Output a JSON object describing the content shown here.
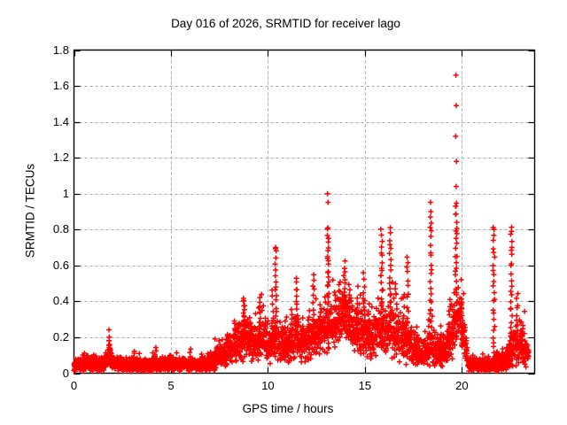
{
  "page": {
    "background": "#ffffff"
  },
  "chart_data": {
    "type": "scatter",
    "title": "Day 016 of 2026, SRMTID for receiver lago",
    "xlabel": "GPS time / hours",
    "ylabel": "SRMTID / TECUs",
    "series_name": "SRMTID",
    "xlim": [
      0,
      23.75
    ],
    "ylim": [
      0,
      1.8
    ],
    "xticks": [
      0,
      5,
      10,
      15,
      20
    ],
    "yticks": [
      0,
      0.2,
      0.4,
      0.6,
      0.8,
      1,
      1.2,
      1.4,
      1.6,
      1.8
    ],
    "xtick_labels": [
      "0",
      "5",
      "10",
      "15",
      "20"
    ],
    "ytick_labels": [
      "0",
      "0.2",
      "0.4",
      "0.6",
      "0.8",
      "1",
      "1.2",
      "1.4",
      "1.6",
      "1.8"
    ],
    "grid": true,
    "grid_style": "dashed",
    "legend_position": "none",
    "marker": {
      "shape": "plus",
      "color": "#ff0000",
      "size": 7,
      "stroke": 1.5
    },
    "colors": {
      "marker": "#ff0000",
      "grid": "#a8a8a8",
      "axis": "#000000",
      "text": "#000000",
      "background": "#ffffff"
    },
    "points_per_hour": 130,
    "baseline_band": [
      [
        0.0,
        0.05,
        0.035
      ],
      [
        1.5,
        0.05,
        0.03
      ],
      [
        1.8,
        0.1,
        0.05
      ],
      [
        2.1,
        0.06,
        0.03
      ],
      [
        2.6,
        0.045,
        0.03
      ],
      [
        3.6,
        0.045,
        0.03
      ],
      [
        4.6,
        0.05,
        0.03
      ],
      [
        5.6,
        0.045,
        0.028
      ],
      [
        6.6,
        0.05,
        0.03
      ],
      [
        7.2,
        0.07,
        0.04
      ],
      [
        7.7,
        0.1,
        0.05
      ],
      [
        8.1,
        0.15,
        0.07
      ],
      [
        8.8,
        0.2,
        0.09
      ],
      [
        9.3,
        0.16,
        0.07
      ],
      [
        9.7,
        0.2,
        0.09
      ],
      [
        10.1,
        0.15,
        0.07
      ],
      [
        10.45,
        0.2,
        0.1
      ],
      [
        10.9,
        0.15,
        0.07
      ],
      [
        11.5,
        0.2,
        0.1
      ],
      [
        11.9,
        0.16,
        0.08
      ],
      [
        12.4,
        0.2,
        0.09
      ],
      [
        13.0,
        0.25,
        0.11
      ],
      [
        13.6,
        0.28,
        0.11
      ],
      [
        14.0,
        0.32,
        0.11
      ],
      [
        14.4,
        0.26,
        0.1
      ],
      [
        14.8,
        0.24,
        0.1
      ],
      [
        15.3,
        0.2,
        0.09
      ],
      [
        15.9,
        0.24,
        0.11
      ],
      [
        16.4,
        0.24,
        0.11
      ],
      [
        16.8,
        0.2,
        0.1
      ],
      [
        17.3,
        0.16,
        0.09
      ],
      [
        17.9,
        0.11,
        0.06
      ],
      [
        18.4,
        0.14,
        0.08
      ],
      [
        19.0,
        0.11,
        0.06
      ],
      [
        19.5,
        0.22,
        0.1
      ],
      [
        19.9,
        0.32,
        0.1
      ],
      [
        20.1,
        0.2,
        0.08
      ],
      [
        20.35,
        0.05,
        0.03
      ],
      [
        21.5,
        0.04,
        0.025
      ],
      [
        21.8,
        0.07,
        0.045
      ],
      [
        22.2,
        0.06,
        0.04
      ],
      [
        22.6,
        0.13,
        0.08
      ],
      [
        23.0,
        0.16,
        0.09
      ],
      [
        23.45,
        0.09,
        0.05
      ]
    ],
    "spikes": [
      [
        1.85,
        0.06,
        0.19,
        14
      ],
      [
        3.1,
        0.04,
        0.12,
        8
      ],
      [
        4.2,
        0.04,
        0.13,
        8
      ],
      [
        5.0,
        0.04,
        0.11,
        6
      ],
      [
        6.0,
        0.04,
        0.12,
        6
      ],
      [
        7.9,
        0.1,
        0.22,
        8
      ],
      [
        8.3,
        0.1,
        0.3,
        10
      ],
      [
        8.75,
        0.18,
        0.43,
        14
      ],
      [
        9.1,
        0.12,
        0.3,
        8
      ],
      [
        9.6,
        0.18,
        0.42,
        12
      ],
      [
        9.9,
        0.12,
        0.3,
        8
      ],
      [
        10.25,
        0.15,
        0.45,
        10
      ],
      [
        10.4,
        0.25,
        0.7,
        16
      ],
      [
        10.9,
        0.1,
        0.28,
        8
      ],
      [
        11.2,
        0.15,
        0.35,
        8
      ],
      [
        11.45,
        0.2,
        0.53,
        14
      ],
      [
        11.8,
        0.12,
        0.3,
        8
      ],
      [
        12.1,
        0.15,
        0.35,
        8
      ],
      [
        12.35,
        0.2,
        0.55,
        12
      ],
      [
        12.7,
        0.15,
        0.38,
        8
      ],
      [
        13.1,
        0.35,
        0.82,
        24
      ],
      [
        13.45,
        0.2,
        0.45,
        10
      ],
      [
        13.7,
        0.25,
        0.5,
        10
      ],
      [
        13.95,
        0.3,
        0.62,
        14
      ],
      [
        14.2,
        0.25,
        0.48,
        10
      ],
      [
        14.6,
        0.18,
        0.42,
        10
      ],
      [
        14.95,
        0.2,
        0.55,
        12
      ],
      [
        15.2,
        0.15,
        0.38,
        8
      ],
      [
        15.85,
        0.25,
        0.79,
        20
      ],
      [
        16.3,
        0.25,
        0.8,
        20
      ],
      [
        16.6,
        0.18,
        0.5,
        10
      ],
      [
        17.0,
        0.15,
        0.45,
        8
      ],
      [
        17.2,
        0.2,
        0.66,
        14
      ],
      [
        17.7,
        0.08,
        0.25,
        8
      ],
      [
        18.4,
        0.25,
        0.88,
        20
      ],
      [
        18.9,
        0.08,
        0.25,
        8
      ],
      [
        19.35,
        0.15,
        0.4,
        10
      ],
      [
        19.7,
        0.3,
        0.95,
        26
      ],
      [
        20.0,
        0.15,
        0.42,
        12
      ],
      [
        21.65,
        0.08,
        0.8,
        24
      ],
      [
        22.55,
        0.1,
        0.8,
        24
      ],
      [
        22.85,
        0.1,
        0.45,
        12
      ],
      [
        23.1,
        0.08,
        0.3,
        10
      ]
    ],
    "outlier_points": [
      [
        13.07,
        1.0
      ],
      [
        13.1,
        0.952
      ],
      [
        18.38,
        0.952
      ],
      [
        18.4,
        0.9
      ],
      [
        19.69,
        1.66
      ],
      [
        19.71,
        1.49
      ],
      [
        19.68,
        1.32
      ],
      [
        19.72,
        1.18
      ],
      [
        19.7,
        1.04
      ],
      [
        19.69,
        0.93
      ],
      [
        10.4,
        0.7
      ],
      [
        21.66,
        0.8
      ],
      [
        22.56,
        0.79
      ]
    ]
  }
}
